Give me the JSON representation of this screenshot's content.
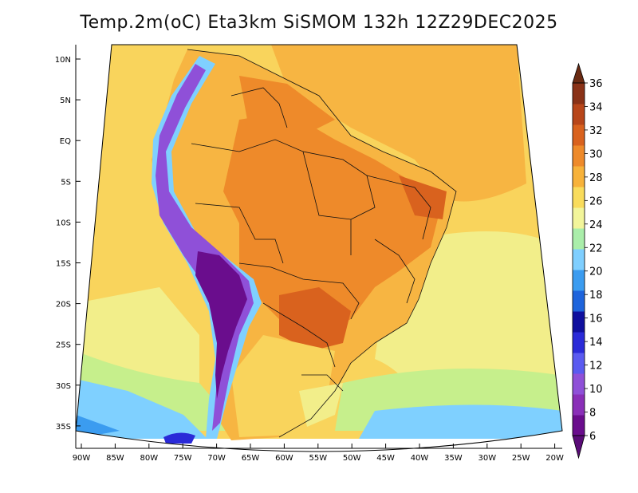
{
  "title": "Temp.2m(oC) Eta3km SiSMOM 132h 12Z29DEC2025",
  "map": {
    "lat_ticks": [
      "10N",
      "5N",
      "EQ",
      "5S",
      "10S",
      "15S",
      "20S",
      "25S",
      "30S",
      "35S"
    ],
    "lon_ticks": [
      "90W",
      "85W",
      "80W",
      "75W",
      "70W",
      "65W",
      "60W",
      "55W",
      "50W",
      "45W",
      "40W",
      "35W",
      "30W",
      "25W",
      "20W"
    ],
    "lat_range": [
      -38,
      11
    ],
    "lon_range": [
      -91,
      -20
    ]
  },
  "colorbar": {
    "labels": [
      "6",
      "8",
      "10",
      "12",
      "14",
      "16",
      "18",
      "20",
      "22",
      "24",
      "26",
      "28",
      "30",
      "32",
      "34",
      "36"
    ],
    "colors": [
      "#6a0d8d",
      "#8a2fb8",
      "#8f50d8",
      "#5a5af0",
      "#2a2ad8",
      "#0f0f9e",
      "#1e64dc",
      "#3b9cf0",
      "#7fcfff",
      "#aaeeaa",
      "#f2f59a",
      "#f9dc5c",
      "#f7b23a",
      "#ee8a2a",
      "#d9621e",
      "#b8461a",
      "#8a3217"
    ],
    "min_color": "#5a0c78",
    "max_color": "#6a2a12"
  },
  "colors": {
    "ocean_warm": "#f7b542",
    "ocean_mid": "#f9d45c",
    "ocean_cool": "#f2ee8a",
    "ocean_south": "#c6ef8c",
    "ocean_cold": "#7fd0ff",
    "land_hot": "#ee8a2a",
    "land_very_hot": "#d9621e",
    "andes": "#8a2fb8",
    "andes_core": "#6a0d8d"
  }
}
